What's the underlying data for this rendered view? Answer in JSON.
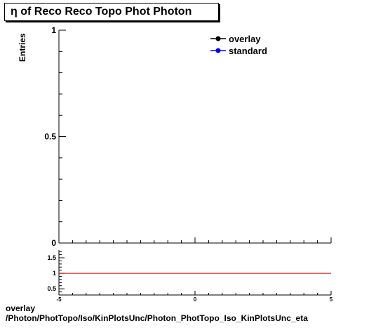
{
  "title": "η of Reco Reco Topo Phot Photon",
  "footer": {
    "line1": "overlay",
    "line2": "/Photon/PhotTopo/Iso/KinPlotsUnc/Photon_PhotTopo_Iso_KinPlotsUnc_eta"
  },
  "colors": {
    "overlay": "#000000",
    "standard": "#0000ff",
    "ratio_line": "#cc0000"
  },
  "chart_data": [
    {
      "type": "line",
      "title": "η of Reco Reco Topo Phot Photon",
      "xlabel": "",
      "ylabel": "Entries",
      "xlim": [
        -5,
        5
      ],
      "ylim": [
        0,
        1
      ],
      "yticks": [
        {
          "value": 0,
          "label": "0"
        },
        {
          "value": 0.5,
          "label": "0.5"
        },
        {
          "value": 1,
          "label": "1"
        }
      ],
      "legend_position": "top-right",
      "series": [
        {
          "name": "overlay",
          "x": [],
          "y": []
        },
        {
          "name": "standard",
          "x": [],
          "y": []
        }
      ]
    },
    {
      "type": "line",
      "title": "",
      "xlabel": "",
      "ylabel": "",
      "xlim": [
        -5,
        5
      ],
      "ylim": [
        0.3,
        1.75
      ],
      "yticks": [
        {
          "value": 0.5,
          "label": "0.5"
        },
        {
          "value": 1,
          "label": "1"
        },
        {
          "value": 1.5,
          "label": "1.5"
        }
      ],
      "xticks": [
        {
          "value": -5,
          "label": "-5"
        },
        {
          "value": 0,
          "label": "0"
        },
        {
          "value": 5,
          "label": "5"
        }
      ],
      "reference_line": 1
    }
  ]
}
